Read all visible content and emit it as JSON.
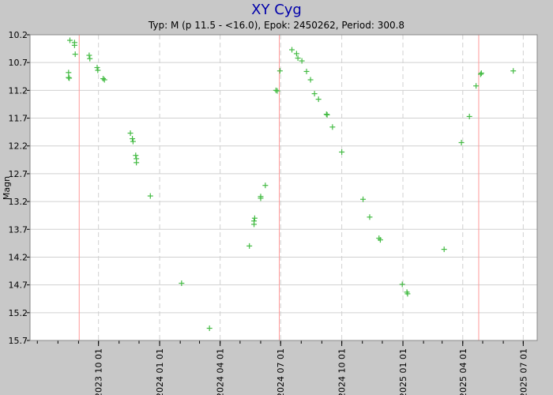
{
  "chart_data": {
    "type": "scatter",
    "title": "XY Cyg",
    "subtitle": "Typ: M (p 11.5 - <16.0), Epok: 2450262, Period: 300.8",
    "xlabel": "",
    "ylabel": "Magn",
    "x_type": "date",
    "xlim": [
      "2023-06-20",
      "2025-07-22"
    ],
    "ylim": [
      10.2,
      15.7
    ],
    "y_inverted": true,
    "grid": true,
    "x_ticks": [
      "2023 10 01",
      "2024 01 01",
      "2024 04 01",
      "2024 07 01",
      "2024 10 01",
      "2025 01 01",
      "2025 04 01",
      "2025 07 01"
    ],
    "y_ticks": [
      "10.2",
      "10.7",
      "11.2",
      "11.7",
      "12.2",
      "12.7",
      "13.2",
      "13.7",
      "14.2",
      "14.7",
      "15.2",
      "15.7"
    ],
    "markers": [
      "2023-09-02",
      "2024-06-29",
      "2025-04-25"
    ],
    "colors": {
      "background": "#c8c8c8",
      "plot_bg": "#ffffff",
      "points": "#44bb44",
      "markers": "#ff9999",
      "grid": "#d0d0d0",
      "title": "#0000aa"
    },
    "series": [
      {
        "points": [
          [
            "2023-08-17",
            10.88
          ],
          [
            "2023-08-17",
            10.97
          ],
          [
            "2023-08-18",
            10.98
          ],
          [
            "2023-08-19",
            10.3
          ],
          [
            "2023-08-26",
            10.34
          ],
          [
            "2023-08-26",
            10.39
          ],
          [
            "2023-08-27",
            10.55
          ],
          [
            "2023-09-17",
            10.57
          ],
          [
            "2023-09-18",
            10.63
          ],
          [
            "2023-09-29",
            10.79
          ],
          [
            "2023-09-30",
            10.84
          ],
          [
            "2023-10-08",
            10.99
          ],
          [
            "2023-10-10",
            11.01
          ],
          [
            "2023-11-18",
            11.97
          ],
          [
            "2023-11-21",
            12.07
          ],
          [
            "2023-11-22",
            12.12
          ],
          [
            "2023-11-26",
            12.37
          ],
          [
            "2023-11-27",
            12.43
          ],
          [
            "2023-11-27",
            12.5
          ],
          [
            "2023-12-18",
            13.1
          ],
          [
            "2024-02-03",
            14.67
          ],
          [
            "2024-03-16",
            15.48
          ],
          [
            "2024-05-15",
            14.0
          ],
          [
            "2024-05-22",
            13.55
          ],
          [
            "2024-05-22",
            13.61
          ],
          [
            "2024-05-23",
            13.5
          ],
          [
            "2024-06-01",
            13.11
          ],
          [
            "2024-06-01",
            13.14
          ],
          [
            "2024-06-08",
            12.91
          ],
          [
            "2024-06-24",
            11.2
          ],
          [
            "2024-06-26",
            11.21
          ],
          [
            "2024-06-30",
            10.85
          ],
          [
            "2024-07-18",
            10.47
          ],
          [
            "2024-07-25",
            10.54
          ],
          [
            "2024-07-27",
            10.62
          ],
          [
            "2024-08-02",
            10.67
          ],
          [
            "2024-08-09",
            10.86
          ],
          [
            "2024-08-15",
            11.01
          ],
          [
            "2024-08-21",
            11.26
          ],
          [
            "2024-08-27",
            11.36
          ],
          [
            "2024-09-08",
            11.63
          ],
          [
            "2024-09-09",
            11.64
          ],
          [
            "2024-09-17",
            11.86
          ],
          [
            "2024-10-01",
            12.31
          ],
          [
            "2024-11-02",
            13.16
          ],
          [
            "2024-11-12",
            13.48
          ],
          [
            "2024-11-26",
            13.86
          ],
          [
            "2024-11-28",
            13.89
          ],
          [
            "2024-12-31",
            14.69
          ],
          [
            "2025-01-07",
            14.83
          ],
          [
            "2025-01-08",
            14.86
          ],
          [
            "2025-03-04",
            14.06
          ],
          [
            "2025-03-30",
            12.14
          ],
          [
            "2025-04-11",
            11.67
          ],
          [
            "2025-04-21",
            11.12
          ],
          [
            "2025-04-28",
            10.91
          ],
          [
            "2025-04-29",
            10.89
          ],
          [
            "2025-06-16",
            10.85
          ]
        ]
      }
    ]
  }
}
